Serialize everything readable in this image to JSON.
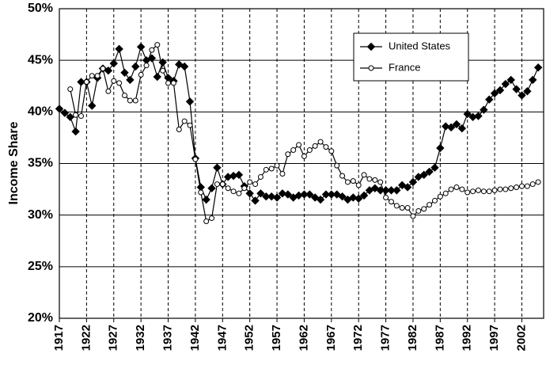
{
  "chart_data": {
    "type": "line",
    "y_label": "Income Share",
    "x": [
      1917,
      1918,
      1919,
      1920,
      1921,
      1922,
      1923,
      1924,
      1925,
      1926,
      1927,
      1928,
      1929,
      1930,
      1931,
      1932,
      1933,
      1934,
      1935,
      1936,
      1937,
      1938,
      1939,
      1940,
      1941,
      1942,
      1943,
      1944,
      1945,
      1946,
      1947,
      1948,
      1949,
      1950,
      1951,
      1952,
      1953,
      1954,
      1955,
      1956,
      1957,
      1958,
      1959,
      1960,
      1961,
      1962,
      1963,
      1964,
      1965,
      1966,
      1967,
      1968,
      1969,
      1970,
      1971,
      1972,
      1973,
      1974,
      1975,
      1976,
      1977,
      1978,
      1979,
      1980,
      1981,
      1982,
      1983,
      1984,
      1985,
      1986,
      1987,
      1988,
      1989,
      1990,
      1991,
      1992,
      1993,
      1994,
      1995,
      1996,
      1997,
      1998,
      1999,
      2000,
      2001,
      2002,
      2003,
      2004,
      2005
    ],
    "series": [
      {
        "name": "United States",
        "color": "#000000",
        "marker": "diamond",
        "values": [
          40.3,
          39.9,
          39.5,
          38.1,
          42.9,
          42.9,
          40.6,
          43.3,
          44.2,
          44.0,
          44.7,
          46.1,
          43.8,
          43.1,
          44.4,
          46.3,
          45.0,
          45.2,
          43.4,
          44.8,
          43.3,
          43.0,
          44.6,
          44.4,
          41.0,
          35.5,
          32.7,
          31.5,
          32.6,
          34.6,
          33.0,
          33.7,
          33.8,
          33.9,
          32.8,
          32.1,
          31.4,
          32.1,
          31.8,
          31.8,
          31.7,
          32.1,
          32.0,
          31.7,
          31.9,
          32.0,
          32.0,
          31.7,
          31.5,
          32.0,
          32.0,
          32.0,
          31.8,
          31.5,
          31.7,
          31.6,
          31.9,
          32.4,
          32.6,
          32.4,
          32.4,
          32.4,
          32.4,
          32.9,
          32.7,
          33.2,
          33.7,
          33.9,
          34.2,
          34.6,
          36.5,
          38.6,
          38.5,
          38.8,
          38.4,
          39.8,
          39.5,
          39.6,
          40.2,
          41.2,
          41.8,
          42.1,
          42.7,
          43.1,
          42.2,
          41.6,
          42.0,
          43.1,
          44.3
        ]
      },
      {
        "name": "France",
        "color": "#000000",
        "marker": "circle",
        "values": [
          null,
          null,
          42.2,
          39.7,
          39.6,
          42.9,
          43.5,
          43.5,
          44.2,
          42.0,
          43.0,
          42.8,
          41.6,
          41.1,
          41.1,
          43.6,
          44.5,
          46.0,
          46.5,
          44.0,
          42.8,
          42.8,
          38.3,
          39.1,
          38.7,
          35.4,
          32.2,
          29.4,
          29.7,
          33.0,
          33.0,
          32.6,
          32.3,
          32.1,
          32.6,
          33.2,
          33.0,
          33.7,
          34.4,
          34.5,
          34.8,
          34.0,
          35.9,
          36.3,
          36.8,
          35.7,
          36.3,
          36.7,
          37.1,
          36.6,
          36.2,
          34.8,
          33.8,
          33.2,
          33.3,
          32.9,
          33.9,
          33.5,
          33.4,
          33.2,
          31.7,
          31.3,
          30.9,
          30.7,
          30.7,
          29.9,
          30.4,
          30.6,
          31.0,
          31.4,
          31.8,
          32.1,
          32.5,
          32.7,
          32.5,
          32.2,
          32.3,
          32.4,
          32.3,
          32.3,
          32.4,
          32.5,
          32.5,
          32.6,
          32.7,
          32.8,
          32.8,
          33.0,
          33.2
        ]
      }
    ],
    "xlim": [
      1917,
      2006
    ],
    "ylim": [
      20,
      50
    ],
    "xticks": [
      1917,
      1922,
      1927,
      1932,
      1937,
      1942,
      1947,
      1952,
      1957,
      1962,
      1967,
      1972,
      1977,
      1982,
      1987,
      1992,
      1997,
      2002
    ],
    "yticks": [
      {
        "value": 20,
        "label": "20%"
      },
      {
        "value": 25,
        "label": "25%"
      },
      {
        "value": 30,
        "label": "30%"
      },
      {
        "value": 35,
        "label": "35%"
      },
      {
        "value": 40,
        "label": "40%"
      },
      {
        "value": 45,
        "label": "45%"
      },
      {
        "value": 50,
        "label": "50%"
      }
    ],
    "grid": true,
    "legend": "upper-right"
  }
}
